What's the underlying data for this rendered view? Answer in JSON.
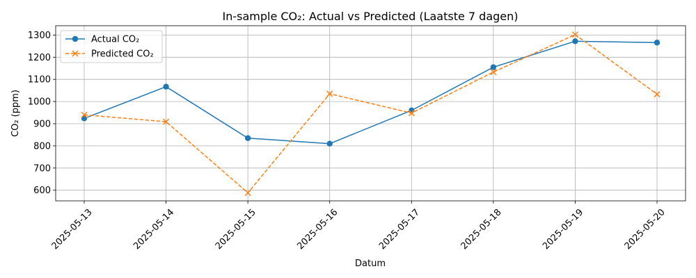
{
  "chart_data": {
    "type": "line",
    "title": "In-sample CO₂: Actual vs Predicted (Laatste 7 dagen)",
    "xlabel": "Datum",
    "ylabel": "CO₂ (ppm)",
    "categories": [
      "2025-05-13",
      "2025-05-14",
      "2025-05-15",
      "2025-05-16",
      "2025-05-17",
      "2025-05-18",
      "2025-05-19",
      "2025-05-20"
    ],
    "yticks": [
      600,
      700,
      800,
      900,
      1000,
      1100,
      1200,
      1300
    ],
    "ylim": [
      552,
      1342
    ],
    "grid": true,
    "legend_position": "top-left",
    "series": [
      {
        "name": "Actual CO₂",
        "color": "#1f77b4",
        "marker": "circle",
        "linestyle": "solid",
        "values": [
          924,
          1067,
          835,
          810,
          960,
          1155,
          1272,
          1266
        ]
      },
      {
        "name": "Predicted CO₂",
        "color": "#ff7f0e",
        "marker": "x",
        "linestyle": "dashed",
        "values": [
          940,
          909,
          588,
          1035,
          948,
          1133,
          1302,
          1033
        ]
      }
    ]
  }
}
